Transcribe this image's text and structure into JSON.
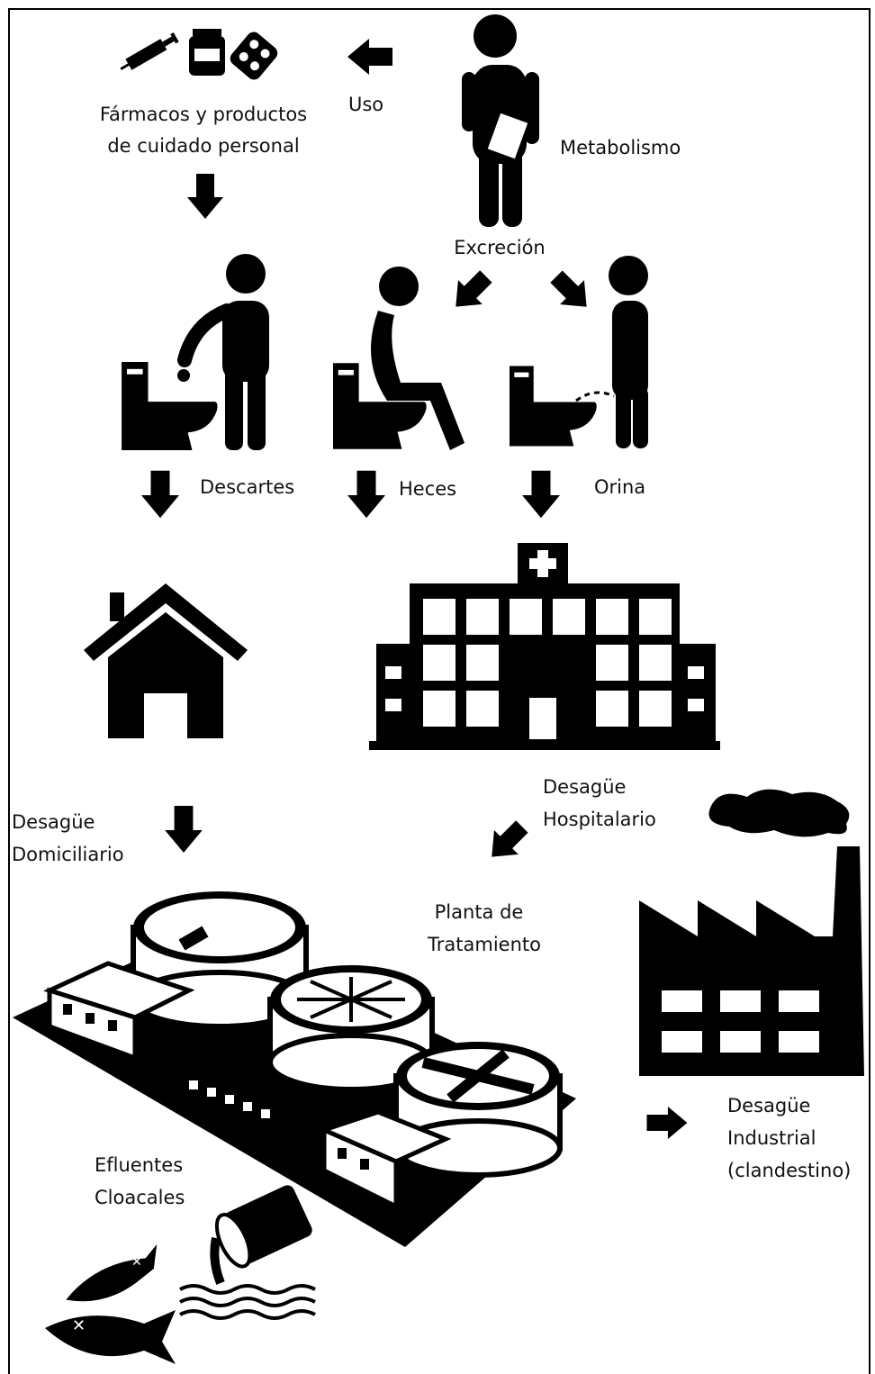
{
  "nodes": [
    {
      "lines": [
        "Fármacos y productos",
        "de cuidado personal"
      ]
    },
    {
      "lines": [
        "Uso"
      ]
    },
    {
      "lines": [
        "Metabolismo"
      ]
    },
    {
      "lines": [
        "Excreción"
      ]
    },
    {
      "lines": [
        "Descartes"
      ]
    },
    {
      "lines": [
        "Heces"
      ]
    },
    {
      "lines": [
        "Orina"
      ]
    },
    {
      "lines": [
        "Desagüe",
        "Hospitalario"
      ]
    },
    {
      "lines": [
        "Desagüe",
        "Domiciliario"
      ]
    },
    {
      "lines": [
        "Planta de",
        "Tratamiento"
      ]
    },
    {
      "lines": [
        "Desagüe",
        "Industrial",
        "(clandestino)"
      ]
    },
    {
      "lines": [
        "Efluentes",
        "Cloacales"
      ]
    }
  ]
}
